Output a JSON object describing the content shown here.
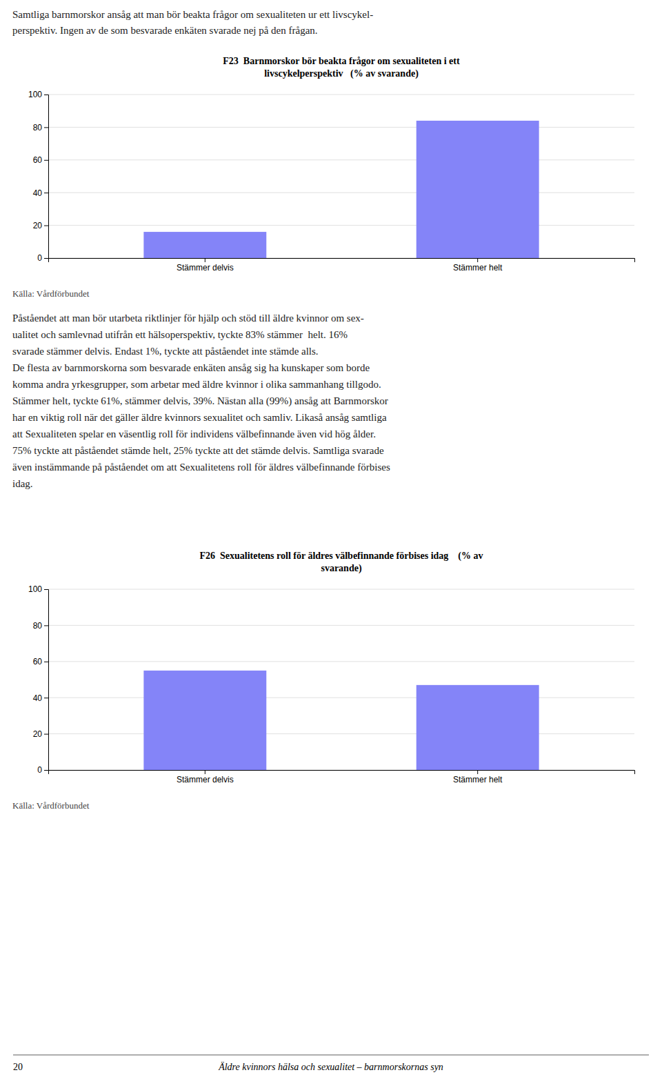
{
  "chart_data": [
    {
      "type": "bar",
      "title": "F23  Barnmorskor bör beakta frågor om sexualiteten i ett\nlivscykelperspektiv   (% av svarande)",
      "categories": [
        "Stämmer delvis",
        "Stämmer helt"
      ],
      "values": [
        16,
        84
      ],
      "color": "#8484f8",
      "ylim": [
        0,
        100
      ],
      "yticks": [
        0,
        20,
        40,
        60,
        80,
        100
      ],
      "grid": true,
      "source": "Källa: Vårdförbundet"
    },
    {
      "type": "bar",
      "title": "F26  Sexualitetens roll för äldres välbefinnande förbises idag    (% av\nsvarande)",
      "categories": [
        "Stämmer delvis",
        "Stämmer helt"
      ],
      "values": [
        55,
        47
      ],
      "color": "#8484f8",
      "ylim": [
        0,
        100
      ],
      "yticks": [
        0,
        20,
        40,
        60,
        80,
        100
      ],
      "grid": true,
      "source": "Källa: Vårdförbundet"
    }
  ],
  "text_top": [
    "Samtliga barnmorskor ansåg att man bör beakta frågor om sexualiteten ur ett livscykel-",
    "perspektiv. Ingen av de som besvarade enkäten svarade nej på den frågan."
  ],
  "middle_text": [
    "Påståendet att man bör utarbeta riktlinjer för hjälp och stöd till äldre kvinnor om sex-",
    "ualitet och samlevnad utifrån ett hälsoperspektiv, tyckte 83% stämmer  helt. 16%",
    "svarade stämmer delvis. Endast 1%, tyckte att påståendet inte stämde alls.",
    "De flesta av barnmorskorna som besvarade enkäten ansåg sig ha kunskaper som borde",
    "komma andra yrkesgrupper, som arbetar med äldre kvinnor i olika sammanhang tillgodo.",
    "Stämmer helt, tyckte 61%, stämmer delvis, 39%. Nästan alla (99%) ansåg att Barnmorskor",
    "har en viktig roll när det gäller äldre kvinnors sexualitet och samliv. Likaså ansåg samtliga",
    "att Sexualiteten spelar en väsentlig roll för individens välbefinnande även vid hög ålder.",
    "75% tyckte att påståendet stämde helt, 25% tyckte att det stämde delvis. Samtliga svarade",
    "även instämmande på påståendet om att Sexualitetens roll för äldres välbefinnande förbises",
    "idag."
  ],
  "footer_number": "20",
  "footer_text": "Äldre kvinnors hälsa och sexualitet – barnmorskornas syn"
}
